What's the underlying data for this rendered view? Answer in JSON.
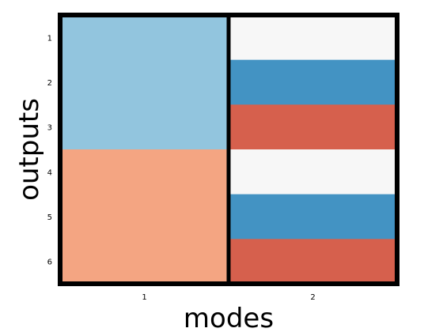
{
  "chart_data": {
    "type": "heatmap",
    "title": "",
    "xlabel": "modes",
    "ylabel": "outputs",
    "x_ticks": [
      "1",
      "2"
    ],
    "y_ticks": [
      "1",
      "2",
      "3",
      "4",
      "5",
      "6"
    ],
    "cells": [
      {
        "mode": 1,
        "output": 1,
        "color": "#92c5de"
      },
      {
        "mode": 1,
        "output": 2,
        "color": "#92c5de"
      },
      {
        "mode": 1,
        "output": 3,
        "color": "#92c5de"
      },
      {
        "mode": 1,
        "output": 4,
        "color": "#f4a582"
      },
      {
        "mode": 1,
        "output": 5,
        "color": "#f4a582"
      },
      {
        "mode": 1,
        "output": 6,
        "color": "#f4a582"
      },
      {
        "mode": 2,
        "output": 1,
        "color": "#f7f7f7"
      },
      {
        "mode": 2,
        "output": 2,
        "color": "#4393c3"
      },
      {
        "mode": 2,
        "output": 3,
        "color": "#d6604d"
      },
      {
        "mode": 2,
        "output": 4,
        "color": "#f7f7f7"
      },
      {
        "mode": 2,
        "output": 5,
        "color": "#4393c3"
      },
      {
        "mode": 2,
        "output": 6,
        "color": "#d6604d"
      }
    ],
    "grid": false,
    "frame_color": "#000000"
  }
}
